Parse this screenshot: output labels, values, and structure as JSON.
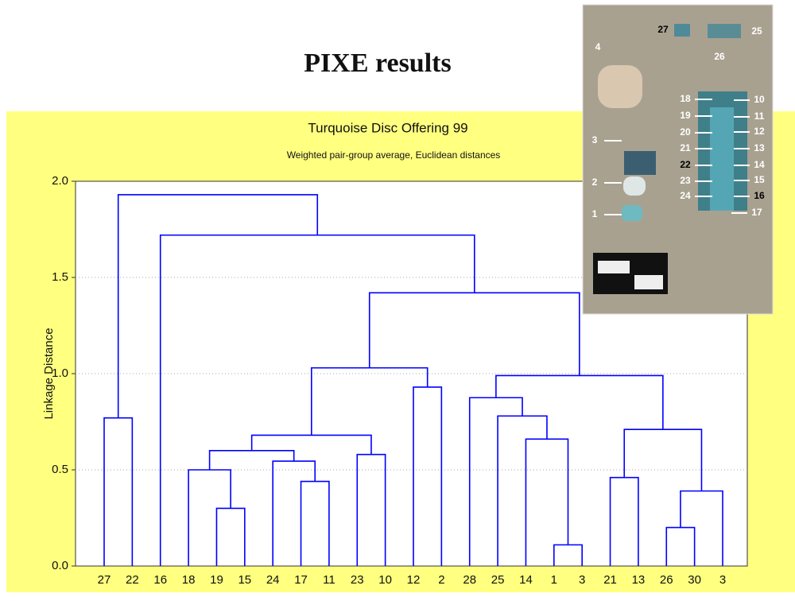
{
  "slide_title": "PIXE results",
  "chart_data": {
    "type": "dendrogram",
    "title": "Turquoise Disc Offering 99",
    "subtitle": "Weighted pair-group average, Euclidean distances",
    "y_label": "Linkage Distance",
    "color": "#0000ff",
    "grid": true,
    "ylim": [
      0,
      2
    ],
    "yticks": [
      {
        "value": 0,
        "label": "0.0"
      },
      {
        "value": 0.5,
        "label": "0.5"
      },
      {
        "value": 1,
        "label": "1.0"
      },
      {
        "value": 1.5,
        "label": "1.5"
      },
      {
        "value": 2,
        "label": "2.0"
      }
    ],
    "tree": {
      "height": 1.93,
      "children": [
        {
          "height": 0.77,
          "children": [
            "27",
            "22"
          ]
        },
        {
          "height": 1.72,
          "children": [
            "16",
            {
              "height": 1.42,
              "children": [
                {
                  "height": 1.03,
                  "children": [
                    {
                      "height": 0.68,
                      "children": [
                        {
                          "height": 0.6,
                          "children": [
                            {
                              "height": 0.5,
                              "children": [
                                "18",
                                {
                                  "height": 0.3,
                                  "children": [
                                    "19",
                                    "15"
                                  ]
                                }
                              ]
                            },
                            {
                              "height": 0.545,
                              "children": [
                                "24",
                                {
                                  "height": 0.44,
                                  "children": [
                                    "17",
                                    "11"
                                  ]
                                }
                              ]
                            }
                          ]
                        },
                        {
                          "height": 0.58,
                          "children": [
                            "23",
                            "10"
                          ]
                        }
                      ]
                    },
                    {
                      "height": 0.93,
                      "children": [
                        "12",
                        "2"
                      ]
                    }
                  ]
                },
                {
                  "height": 0.99,
                  "children": [
                    {
                      "height": 0.875,
                      "children": [
                        "28",
                        {
                          "height": 0.78,
                          "children": [
                            "25",
                            {
                              "height": 0.66,
                              "children": [
                                "14",
                                {
                                  "height": 0.11,
                                  "children": [
                                    "1",
                                    "3"
                                  ]
                                }
                              ]
                            }
                          ]
                        }
                      ]
                    },
                    {
                      "height": 0.71,
                      "children": [
                        {
                          "height": 0.46,
                          "children": [
                            "21",
                            "13"
                          ]
                        },
                        {
                          "height": 0.39,
                          "children": [
                            {
                              "height": 0.2,
                              "children": [
                                "26",
                                "30"
                              ]
                            },
                            "3"
                          ]
                        }
                      ]
                    }
                  ]
                }
              ]
            }
          ]
        }
      ]
    }
  },
  "photo": {
    "labels": [
      "27",
      "25",
      "26",
      "4",
      "18",
      "10",
      "19",
      "11",
      "20",
      "12",
      "21",
      "13",
      "22",
      "14",
      "23",
      "15",
      "24",
      "16",
      "17",
      "3",
      "2",
      "1"
    ]
  }
}
